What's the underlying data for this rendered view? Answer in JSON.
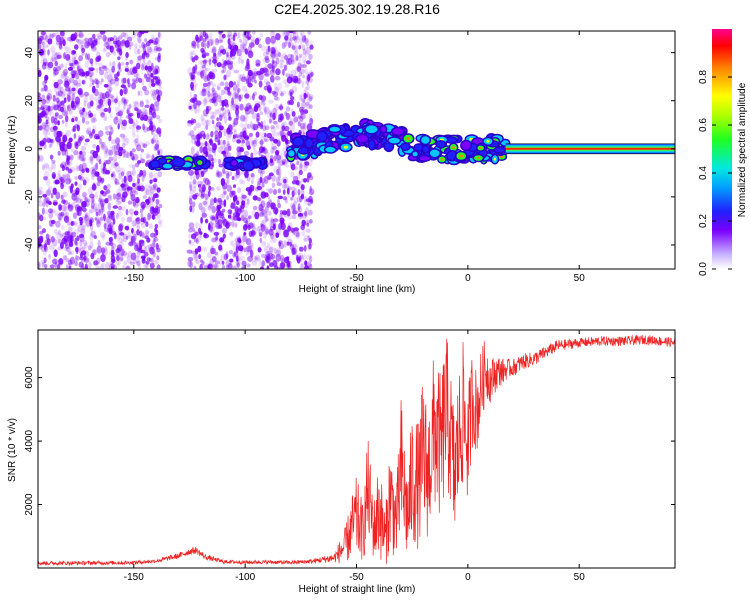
{
  "title": "C2E4.2025.302.19.28.R16",
  "colors": {
    "snr_line": "#ee2222",
    "frame": "#000000",
    "background": "#ffffff",
    "scatter": "#7a00ff"
  },
  "colorbar": {
    "label": "Normalized spectral amplitude",
    "ticks": [
      "0.0",
      "0.2",
      "0.4",
      "0.6",
      "0.8"
    ],
    "tick_values": [
      0.0,
      0.2,
      0.4,
      0.6,
      0.8
    ],
    "range": [
      0,
      1
    ]
  },
  "chart_data": [
    {
      "type": "heatmap",
      "name": "spectrogram",
      "xlabel": "Height of straight line (km)",
      "ylabel": "Frequency (Hz)",
      "xlim": [
        -193,
        93
      ],
      "ylim": [
        -50,
        49
      ],
      "x_ticks": [
        "-150",
        "-100",
        "-50",
        "0",
        "50"
      ],
      "x_tick_values": [
        -150,
        -100,
        -50,
        0,
        50
      ],
      "y_ticks": [
        "40",
        "20",
        "0",
        "-20",
        "-40"
      ],
      "y_tick_values": [
        40,
        20,
        0,
        -20,
        -40
      ],
      "noise_regions_km": [
        [
          -193,
          -138
        ],
        [
          -125,
          -70
        ]
      ],
      "features": [
        {
          "x": [
            -142,
            -118
          ],
          "freq": -6,
          "amp": 0.55
        },
        {
          "x": [
            -107,
            -92
          ],
          "freq": -6,
          "amp": 0.35
        },
        {
          "x": [
            -80,
            -48
          ],
          "freq": 2,
          "amp": 0.45
        },
        {
          "x": [
            -48,
            -28
          ],
          "freq": 5,
          "amp": 0.4
        },
        {
          "x": [
            -28,
            17
          ],
          "freq": 0,
          "amp": 0.55
        },
        {
          "x": [
            17,
            93
          ],
          "freq": 0,
          "amp": 1.0
        }
      ]
    },
    {
      "type": "line",
      "name": "snr",
      "xlabel": "Height of straight line (km)",
      "ylabel": "SNR (10 * v/v)",
      "xlim": [
        -193,
        93
      ],
      "ylim": [
        0,
        7500
      ],
      "x_ticks": [
        "-150",
        "-100",
        "-50",
        "0",
        "50"
      ],
      "x_tick_values": [
        -150,
        -100,
        -50,
        0,
        50
      ],
      "y_ticks": [
        "2000",
        "4000",
        "6000"
      ],
      "y_tick_values": [
        2000,
        4000,
        6000
      ],
      "series": [
        {
          "name": "SNR",
          "x": [
            -193,
            -170,
            -150,
            -140,
            -130,
            -125,
            -122,
            -118,
            -110,
            -100,
            -90,
            -80,
            -70,
            -60,
            -55,
            -52,
            -50,
            -47,
            -45,
            -42,
            -40,
            -37,
            -35,
            -32,
            -30,
            -27,
            -25,
            -22,
            -20,
            -18,
            -15,
            -12,
            -10,
            -8,
            -6,
            -4,
            -2,
            0,
            2,
            4,
            6,
            8,
            10,
            12,
            14,
            16,
            18,
            20,
            25,
            30,
            35,
            40,
            50,
            60,
            70,
            80,
            93
          ],
          "y": [
            150,
            160,
            170,
            220,
            380,
            520,
            560,
            350,
            200,
            180,
            190,
            170,
            210,
            320,
            700,
            1300,
            1600,
            1100,
            2500,
            1200,
            1900,
            900,
            2300,
            1400,
            3100,
            1600,
            2800,
            2600,
            3600,
            2900,
            4400,
            3700,
            5000,
            4300,
            2800,
            4100,
            4900,
            3800,
            5400,
            4900,
            5700,
            6300,
            5900,
            6100,
            6200,
            6200,
            6300,
            6300,
            6500,
            6600,
            6800,
            7000,
            7100,
            7150,
            7150,
            7200,
            7100
          ],
          "noise_amplitude": [
            60,
            60,
            60,
            60,
            90,
            110,
            110,
            90,
            60,
            60,
            60,
            60,
            70,
            150,
            600,
            1000,
            1300,
            900,
            1700,
            1000,
            1600,
            900,
            1800,
            1200,
            2400,
            1400,
            2200,
            2000,
            2700,
            2000,
            2600,
            2300,
            2600,
            2300,
            2200,
            2200,
            2300,
            1800,
            1600,
            1300,
            1200,
            1000,
            700,
            600,
            500,
            400,
            300,
            280,
            250,
            220,
            200,
            180,
            150,
            150,
            150,
            150,
            150
          ]
        }
      ]
    }
  ]
}
